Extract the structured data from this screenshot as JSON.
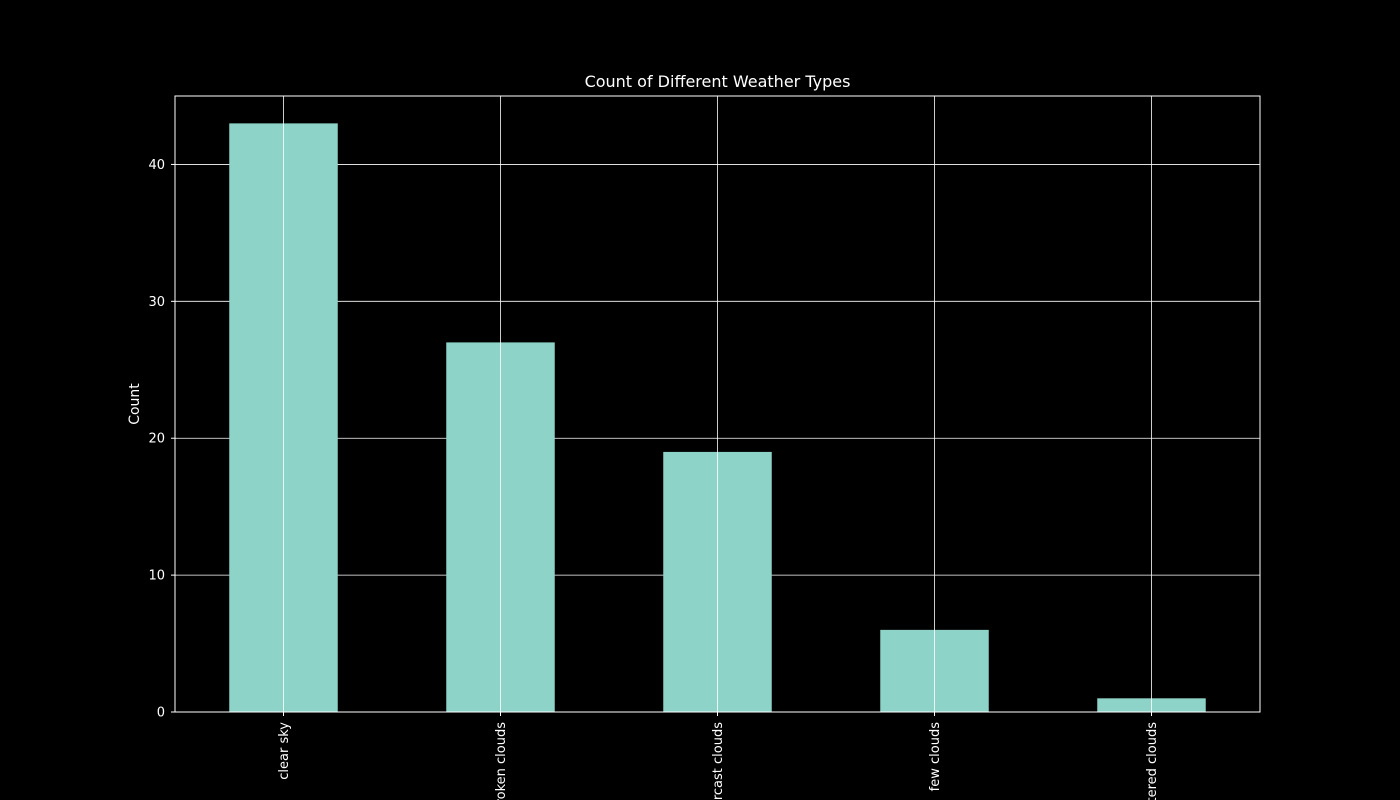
{
  "chart_data": {
    "type": "bar",
    "title": "Count of Different Weather Types",
    "xlabel": "",
    "ylabel": "Count",
    "categories": [
      "clear sky",
      "broken clouds",
      "overcast clouds",
      "few clouds",
      "scattered clouds"
    ],
    "values": [
      43,
      27,
      19,
      6,
      1
    ],
    "ylim": [
      0,
      45
    ],
    "yticks": [
      0,
      10,
      20,
      30,
      40
    ],
    "grid": true,
    "legend": "none",
    "colors": {
      "background": "#000000",
      "bar": "#8dd3c7",
      "text": "#ffffff",
      "grid": "#ffffff"
    }
  }
}
